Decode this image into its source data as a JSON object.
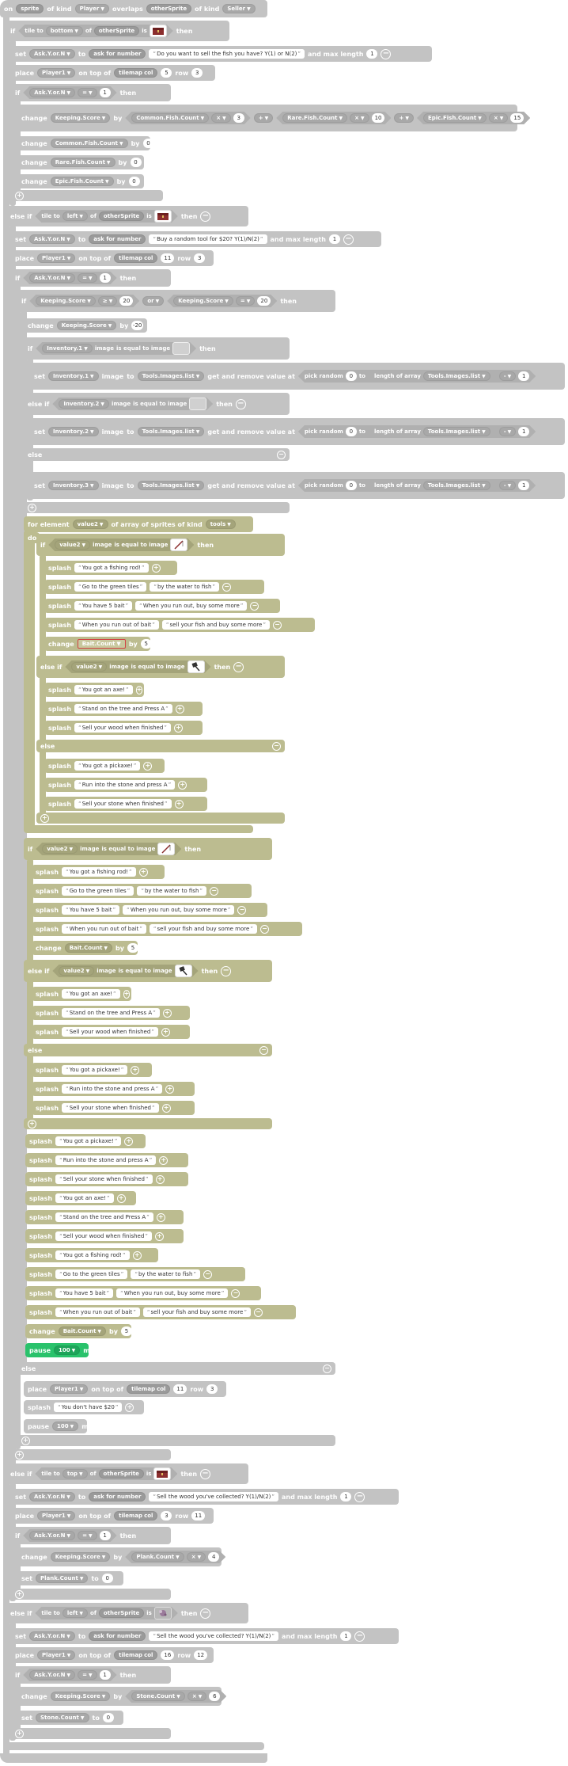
{
  "on": "on",
  "of_kind": "of kind",
  "overlaps": "overlaps",
  "then": "then",
  "to": "to",
  "by": "by",
  "set": "set",
  "change": "change",
  "place": "place",
  "on_top_of": "on top of",
  "col": "col",
  "row": "row",
  "tile_to": "tile to",
  "of": "of",
  "is": "is",
  "if": "if",
  "else_if": "else if",
  "else": "else",
  "and_max_length": "and max length",
  "ask_for_number": "ask for number",
  "image": "image",
  "is_equal_to_image": "is equal to image",
  "get_and_remove": "get and remove value at",
  "pick_random": "pick random",
  "length_of_array": "length of array",
  "splash": "splash",
  "pause": "pause",
  "ms": "ms",
  "for_element": "for element",
  "of_array_kind": "of array of sprites of kind",
  "do": "do",
  "or": "or",
  "tilemap": "tilemap",
  "vars": {
    "sprite": "sprite",
    "Player": "Player",
    "otherSprite": "otherSprite",
    "Seller": "Seller",
    "bottom": "bottom",
    "left": "left",
    "top": "top",
    "AskYorN": "Ask.Y.or.N",
    "Player1": "Player1",
    "KeepingScore": "Keeping.Score",
    "CommonFish": "Common.Fish.Count",
    "RareFish": "Rare.Fish.Count",
    "EpicFish": "Epic.Fish.Count",
    "Inv1": "Inventory.1",
    "Inv2": "Inventory.2",
    "Inv3": "Inventory.3",
    "ToolsList": "Tools.Images.list",
    "value": "value2",
    "tools": "tools",
    "BaitCount": "Bait.Count",
    "PlankCount": "Plank.Count",
    "StoneCount": "Stone.Count"
  },
  "ops": {
    "eq": "=",
    "mul": "×",
    "plus": "+",
    "gte": "≥",
    "minus": "-"
  },
  "nums": {
    "n0": "0",
    "n1": "1",
    "n3": "3",
    "n4": "4",
    "n5": "5",
    "n6": "6",
    "n10": "10",
    "n11": "11",
    "n12": "12",
    "n15": "15",
    "n16": "16",
    "n20": "20",
    "nm20": "-20",
    "n100": "100"
  },
  "strings": {
    "sellFish": "Do you want to sell the fish you have? Y(1) or N(2)",
    "buyTool": "Buy a random tool for $20? Y(1)/N(2)",
    "sellWood": "Sell the wood you've collected? Y(1)/N(2)",
    "gotRod": "You got a fishing rod!",
    "goGreen": "Go to the green tiles",
    "byWater": "by the water to fish",
    "have5": "You have 5 bait",
    "whenOut": "When you run out, buy some more",
    "whenOutBait": "When you run out of bait",
    "sellFishBuy": "sell your fish and buy some more",
    "gotAxe": "You got an axe!",
    "standTree": "Stand on the tree and Press A",
    "sellWoodFin": "Sell your wood when finished",
    "gotPick": "You got a pickaxe!",
    "runStone": "Run into the stone and press A",
    "sellStone": "Sell your stone when finished",
    "noMoney": "You don't have $20"
  },
  "icons": {
    "plus": "+",
    "minus": "−",
    "dropdown": "▼"
  }
}
